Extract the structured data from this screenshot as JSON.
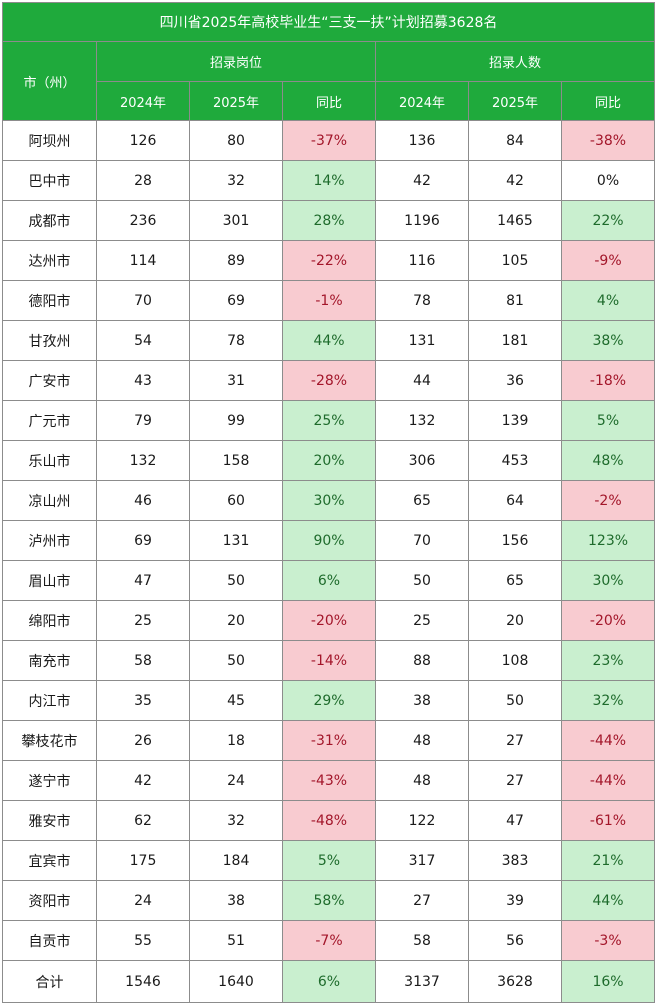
{
  "title": "四川省2025年高校毕业生“三支一扶”计划招募3628名",
  "headers": {
    "city": "市（州）",
    "group_positions": "招录岗位",
    "group_people": "招录人数",
    "y2024": "2024年",
    "y2025": "2025年",
    "yoy": "同比"
  },
  "rows": [
    {
      "city": "阿坝州",
      "p24": "126",
      "p25": "80",
      "pyoy": "-37%",
      "n24": "136",
      "n25": "84",
      "nyoy": "-38%"
    },
    {
      "city": "巴中市",
      "p24": "28",
      "p25": "32",
      "pyoy": "14%",
      "n24": "42",
      "n25": "42",
      "nyoy": "0%"
    },
    {
      "city": "成都市",
      "p24": "236",
      "p25": "301",
      "pyoy": "28%",
      "n24": "1196",
      "n25": "1465",
      "nyoy": "22%"
    },
    {
      "city": "达州市",
      "p24": "114",
      "p25": "89",
      "pyoy": "-22%",
      "n24": "116",
      "n25": "105",
      "nyoy": "-9%"
    },
    {
      "city": "德阳市",
      "p24": "70",
      "p25": "69",
      "pyoy": "-1%",
      "n24": "78",
      "n25": "81",
      "nyoy": "4%"
    },
    {
      "city": "甘孜州",
      "p24": "54",
      "p25": "78",
      "pyoy": "44%",
      "n24": "131",
      "n25": "181",
      "nyoy": "38%"
    },
    {
      "city": "广安市",
      "p24": "43",
      "p25": "31",
      "pyoy": "-28%",
      "n24": "44",
      "n25": "36",
      "nyoy": "-18%"
    },
    {
      "city": "广元市",
      "p24": "79",
      "p25": "99",
      "pyoy": "25%",
      "n24": "132",
      "n25": "139",
      "nyoy": "5%"
    },
    {
      "city": "乐山市",
      "p24": "132",
      "p25": "158",
      "pyoy": "20%",
      "n24": "306",
      "n25": "453",
      "nyoy": "48%"
    },
    {
      "city": "凉山州",
      "p24": "46",
      "p25": "60",
      "pyoy": "30%",
      "n24": "65",
      "n25": "64",
      "nyoy": "-2%"
    },
    {
      "city": "泸州市",
      "p24": "69",
      "p25": "131",
      "pyoy": "90%",
      "n24": "70",
      "n25": "156",
      "nyoy": "123%"
    },
    {
      "city": "眉山市",
      "p24": "47",
      "p25": "50",
      "pyoy": "6%",
      "n24": "50",
      "n25": "65",
      "nyoy": "30%"
    },
    {
      "city": "绵阳市",
      "p24": "25",
      "p25": "20",
      "pyoy": "-20%",
      "n24": "25",
      "n25": "20",
      "nyoy": "-20%"
    },
    {
      "city": "南充市",
      "p24": "58",
      "p25": "50",
      "pyoy": "-14%",
      "n24": "88",
      "n25": "108",
      "nyoy": "23%"
    },
    {
      "city": "内江市",
      "p24": "35",
      "p25": "45",
      "pyoy": "29%",
      "n24": "38",
      "n25": "50",
      "nyoy": "32%"
    },
    {
      "city": "攀枝花市",
      "p24": "26",
      "p25": "18",
      "pyoy": "-31%",
      "n24": "48",
      "n25": "27",
      "nyoy": "-44%"
    },
    {
      "city": "遂宁市",
      "p24": "42",
      "p25": "24",
      "pyoy": "-43%",
      "n24": "48",
      "n25": "27",
      "nyoy": "-44%"
    },
    {
      "city": "雅安市",
      "p24": "62",
      "p25": "32",
      "pyoy": "-48%",
      "n24": "122",
      "n25": "47",
      "nyoy": "-61%"
    },
    {
      "city": "宜宾市",
      "p24": "175",
      "p25": "184",
      "pyoy": "5%",
      "n24": "317",
      "n25": "383",
      "nyoy": "21%"
    },
    {
      "city": "资阳市",
      "p24": "24",
      "p25": "38",
      "pyoy": "58%",
      "n24": "27",
      "n25": "39",
      "nyoy": "44%"
    },
    {
      "city": "自贡市",
      "p24": "55",
      "p25": "51",
      "pyoy": "-7%",
      "n24": "58",
      "n25": "56",
      "nyoy": "-3%"
    }
  ],
  "total": {
    "city": "合计",
    "p24": "1546",
    "p25": "1640",
    "pyoy": "6%",
    "n24": "3137",
    "n25": "3628",
    "nyoy": "16%"
  },
  "colors": {
    "header_green": "#1faa3c",
    "increase_bg": "#c9efcf",
    "increase_text": "#1e6b2c",
    "decrease_bg": "#f8cbd0",
    "decrease_text": "#a3162a"
  }
}
